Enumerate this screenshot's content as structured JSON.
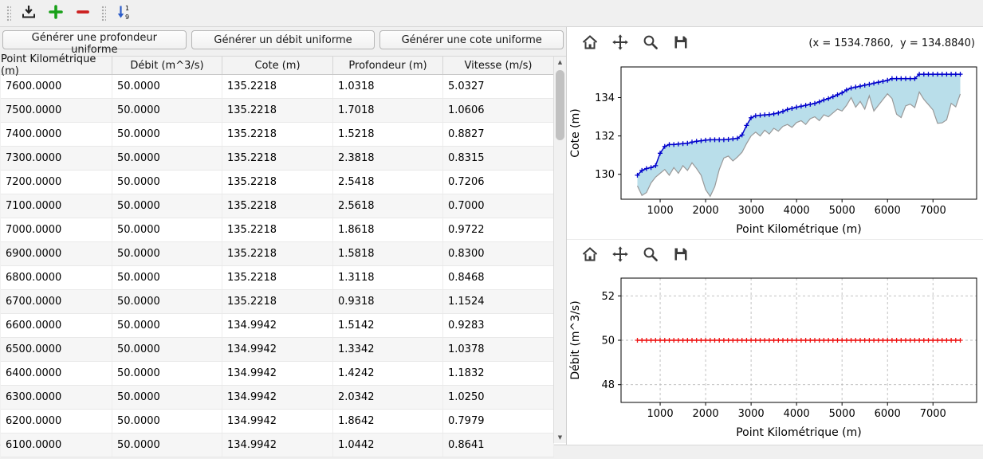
{
  "main_toolbar": {
    "icons": [
      "download-icon",
      "add-row-icon",
      "remove-row-icon",
      "sort-numeric-icon"
    ]
  },
  "generator_buttons": [
    {
      "label": "Générer une profondeur uniforme"
    },
    {
      "label": "Générer un débit uniforme"
    },
    {
      "label": "Générer une cote uniforme"
    }
  ],
  "table": {
    "columns": [
      "Point Kilométrique (m)",
      "Débit (m^3/s)",
      "Cote (m)",
      "Profondeur (m)",
      "Vitesse (m/s)"
    ],
    "rows": [
      [
        "7600.0000",
        "50.0000",
        "135.2218",
        "1.0318",
        "5.0327"
      ],
      [
        "7500.0000",
        "50.0000",
        "135.2218",
        "1.7018",
        "1.0606"
      ],
      [
        "7400.0000",
        "50.0000",
        "135.2218",
        "1.5218",
        "0.8827"
      ],
      [
        "7300.0000",
        "50.0000",
        "135.2218",
        "2.3818",
        "0.8315"
      ],
      [
        "7200.0000",
        "50.0000",
        "135.2218",
        "2.5418",
        "0.7206"
      ],
      [
        "7100.0000",
        "50.0000",
        "135.2218",
        "2.5618",
        "0.7000"
      ],
      [
        "7000.0000",
        "50.0000",
        "135.2218",
        "1.8618",
        "0.9722"
      ],
      [
        "6900.0000",
        "50.0000",
        "135.2218",
        "1.5818",
        "0.8300"
      ],
      [
        "6800.0000",
        "50.0000",
        "135.2218",
        "1.3118",
        "0.8468"
      ],
      [
        "6700.0000",
        "50.0000",
        "135.2218",
        "0.9318",
        "1.1524"
      ],
      [
        "6600.0000",
        "50.0000",
        "134.9942",
        "1.5142",
        "0.9283"
      ],
      [
        "6500.0000",
        "50.0000",
        "134.9942",
        "1.3342",
        "1.0378"
      ],
      [
        "6400.0000",
        "50.0000",
        "134.9942",
        "1.4242",
        "1.1832"
      ],
      [
        "6300.0000",
        "50.0000",
        "134.9942",
        "2.0342",
        "1.0250"
      ],
      [
        "6200.0000",
        "50.0000",
        "134.9942",
        "1.8642",
        "0.7979"
      ],
      [
        "6100.0000",
        "50.0000",
        "134.9942",
        "1.0442",
        "0.8641"
      ]
    ]
  },
  "plot_toolbar": {
    "icons": [
      "home-icon",
      "pan-icon",
      "zoom-icon",
      "save-icon"
    ]
  },
  "coords_readout": "(x = 1534.7860,  y = 134.8840)",
  "status_bar": {
    "text": ""
  },
  "chart_data": [
    {
      "type": "line",
      "title": "",
      "xlabel": "Point Kilométrique (m)",
      "ylabel": "Cote (m)",
      "xlim": [
        140,
        7960
      ],
      "ylim": [
        128.7,
        135.6
      ],
      "xticks": [
        1000,
        2000,
        3000,
        4000,
        5000,
        6000,
        7000
      ],
      "yticks": [
        130,
        132,
        134
      ],
      "grid": false,
      "x": [
        500,
        600,
        700,
        800,
        900,
        1000,
        1100,
        1200,
        1300,
        1400,
        1500,
        1600,
        1700,
        1800,
        1900,
        2000,
        2100,
        2200,
        2300,
        2400,
        2500,
        2600,
        2700,
        2800,
        2900,
        3000,
        3100,
        3200,
        3300,
        3400,
        3500,
        3600,
        3700,
        3800,
        3900,
        4000,
        4100,
        4200,
        4300,
        4400,
        4500,
        4600,
        4700,
        4800,
        4900,
        5000,
        5100,
        5200,
        5300,
        5400,
        5500,
        5600,
        5700,
        5800,
        5900,
        6000,
        6100,
        6200,
        6300,
        6400,
        6500,
        6600,
        6700,
        6800,
        6900,
        7000,
        7100,
        7200,
        7300,
        7400,
        7500,
        7600
      ],
      "series": [
        {
          "name": "fond-du-lit",
          "color": "#999999",
          "marker": null,
          "line_width": 1.2,
          "values": [
            129.4,
            128.9,
            129.05,
            129.55,
            129.85,
            130.05,
            130.25,
            129.95,
            130.35,
            130.05,
            130.45,
            130.2,
            130.6,
            130.3,
            129.95,
            129.2,
            128.85,
            129.35,
            130.25,
            130.85,
            130.95,
            130.7,
            130.9,
            131.15,
            131.6,
            132.0,
            132.2,
            132.0,
            132.3,
            132.1,
            132.4,
            132.25,
            132.5,
            132.6,
            132.45,
            132.7,
            132.8,
            132.6,
            132.9,
            133.0,
            132.8,
            133.1,
            133.0,
            133.2,
            133.4,
            133.3,
            133.6,
            134.0,
            133.5,
            133.8,
            133.4,
            134.1,
            133.3,
            133.6,
            133.9,
            134.2,
            133.95,
            133.13,
            132.96,
            133.57,
            133.66,
            133.48,
            134.29,
            133.91,
            133.64,
            133.36,
            132.66,
            132.68,
            132.84,
            133.7,
            133.52,
            134.19
          ]
        },
        {
          "name": "cote-eau",
          "color": "#0000cc",
          "marker": "+",
          "line_width": 1.5,
          "values": [
            129.95,
            130.2,
            130.3,
            130.35,
            130.45,
            131.1,
            131.45,
            131.55,
            131.55,
            131.58,
            131.6,
            131.62,
            131.68,
            131.72,
            131.75,
            131.78,
            131.8,
            131.8,
            131.8,
            131.8,
            131.82,
            131.85,
            131.88,
            132.05,
            132.55,
            132.95,
            133.05,
            133.08,
            133.1,
            133.12,
            133.15,
            133.2,
            133.28,
            133.38,
            133.44,
            133.5,
            133.55,
            133.6,
            133.65,
            133.7,
            133.78,
            133.88,
            133.95,
            134.05,
            134.15,
            134.25,
            134.4,
            134.5,
            134.55,
            134.6,
            134.65,
            134.7,
            134.75,
            134.8,
            134.85,
            134.9,
            134.9942,
            134.9942,
            134.9942,
            134.9942,
            134.9942,
            134.9942,
            135.2218,
            135.2218,
            135.2218,
            135.2218,
            135.2218,
            135.2218,
            135.2218,
            135.2218,
            135.2218,
            135.2218
          ]
        }
      ],
      "fill_between": {
        "upper": 1,
        "lower": 0,
        "color": "#add8e6",
        "opacity": 0.85
      }
    },
    {
      "type": "line",
      "title": "",
      "xlabel": "Point Kilométrique (m)",
      "ylabel": "Débit (m^3/s)",
      "xlim": [
        140,
        7960
      ],
      "ylim": [
        47.2,
        52.8
      ],
      "xticks": [
        1000,
        2000,
        3000,
        4000,
        5000,
        6000,
        7000
      ],
      "yticks": [
        48,
        50,
        52
      ],
      "grid": true,
      "x": [
        500,
        600,
        700,
        800,
        900,
        1000,
        1100,
        1200,
        1300,
        1400,
        1500,
        1600,
        1700,
        1800,
        1900,
        2000,
        2100,
        2200,
        2300,
        2400,
        2500,
        2600,
        2700,
        2800,
        2900,
        3000,
        3100,
        3200,
        3300,
        3400,
        3500,
        3600,
        3700,
        3800,
        3900,
        4000,
        4100,
        4200,
        4300,
        4400,
        4500,
        4600,
        4700,
        4800,
        4900,
        5000,
        5100,
        5200,
        5300,
        5400,
        5500,
        5600,
        5700,
        5800,
        5900,
        6000,
        6100,
        6200,
        6300,
        6400,
        6500,
        6600,
        6700,
        6800,
        6900,
        7000,
        7100,
        7200,
        7300,
        7400,
        7500,
        7600
      ],
      "series": [
        {
          "name": "debit",
          "color": "#ee1111",
          "marker": "+",
          "line_width": 1.4,
          "values": [
            50,
            50,
            50,
            50,
            50,
            50,
            50,
            50,
            50,
            50,
            50,
            50,
            50,
            50,
            50,
            50,
            50,
            50,
            50,
            50,
            50,
            50,
            50,
            50,
            50,
            50,
            50,
            50,
            50,
            50,
            50,
            50,
            50,
            50,
            50,
            50,
            50,
            50,
            50,
            50,
            50,
            50,
            50,
            50,
            50,
            50,
            50,
            50,
            50,
            50,
            50,
            50,
            50,
            50,
            50,
            50,
            50,
            50,
            50,
            50,
            50,
            50,
            50,
            50,
            50,
            50,
            50,
            50,
            50,
            50,
            50,
            50
          ]
        }
      ]
    }
  ]
}
